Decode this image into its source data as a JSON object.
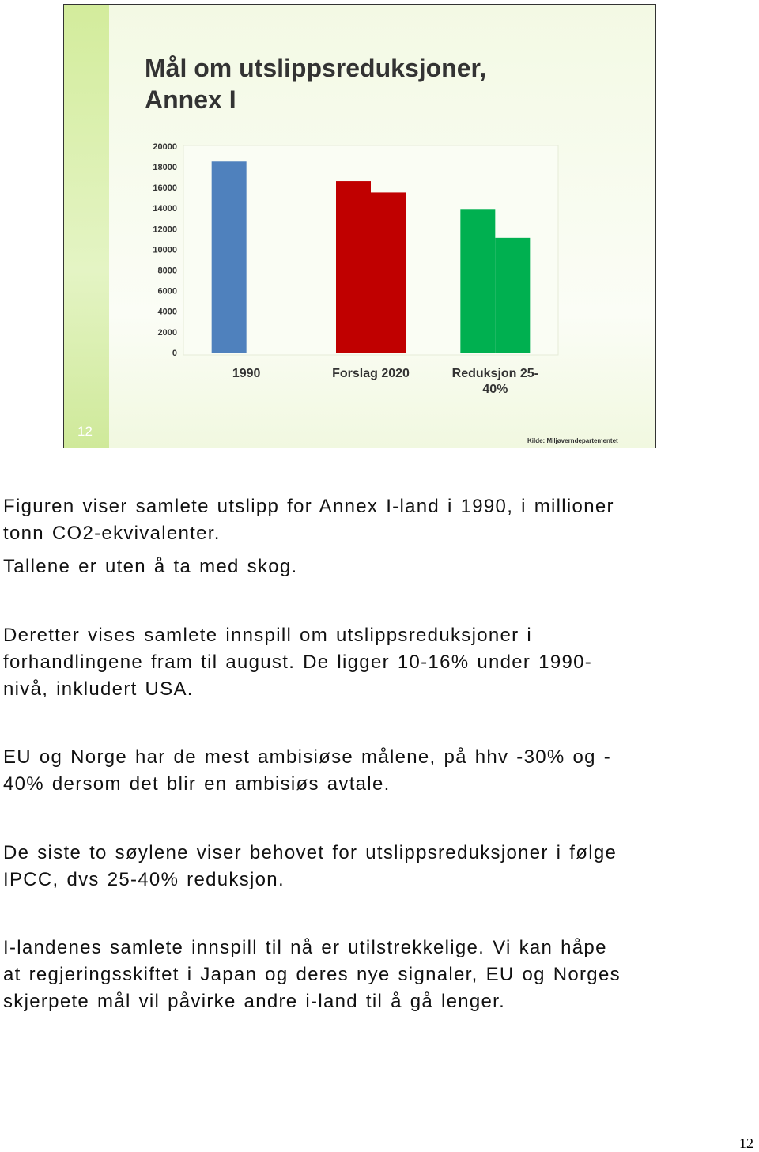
{
  "chart_data": {
    "type": "bar",
    "title": "Mål om utslippsreduksjoner, Annex I",
    "categories": [
      "1990",
      "Forslag 2020",
      "Reduksjon 25-40%"
    ],
    "series": [
      {
        "colors": [
          "#4f81bd",
          "#c00000",
          "#00b050"
        ],
        "values": [
          18600,
          16700,
          14000
        ]
      },
      {
        "colors": [
          "#4f81bd",
          "#c00000",
          "#00b050"
        ],
        "values": [
          null,
          15600,
          11200
        ]
      }
    ],
    "ylim": [
      0,
      20000
    ],
    "yticks": [
      0,
      2000,
      4000,
      6000,
      8000,
      10000,
      12000,
      14000,
      16000,
      18000,
      20000
    ],
    "grid": false,
    "source": "Kilde: Miljøverndepartementet",
    "slide_number": "12"
  },
  "paragraphs": [
    [
      "Figuren viser samlete utslipp for Annex I-land i 1990, i millioner",
      "tonn CO2-ekvivalenter."
    ],
    [
      "Tallene er uten å ta med skog."
    ],
    [
      "Deretter vises samlete innspill om utslippsreduksjoner i",
      "forhandlingene fram til august. De ligger 10-16% under 1990-",
      "nivå, inkludert USA."
    ],
    [
      "EU og Norge har de mest ambisiøse målene, på hhv -30% og -",
      "40% dersom det blir en ambisiøs avtale."
    ],
    [
      "De siste to søylene viser behovet for utslippsreduksjoner i følge",
      "IPCC, dvs 25-40% reduksjon."
    ],
    [
      "I-landenes samlete innspill til nå er utilstrekkelige. Vi kan håpe",
      "at regjeringsskiftet i Japan og deres nye signaler, EU og Norges",
      "skjerpete mål vil påvirke andre i-land til å gå lenger."
    ]
  ],
  "page_number": "12"
}
